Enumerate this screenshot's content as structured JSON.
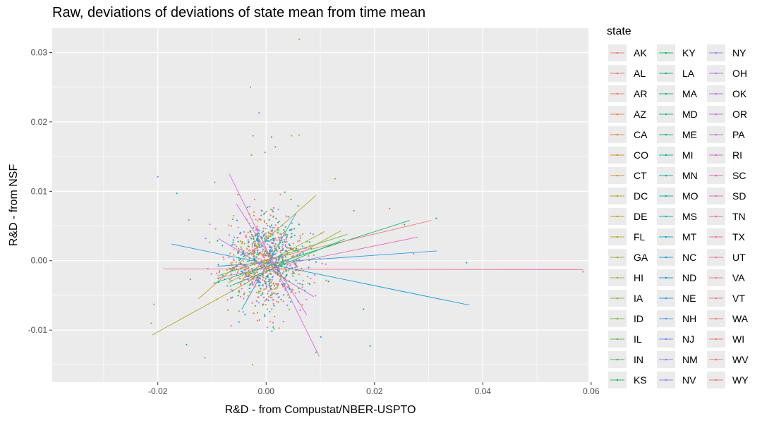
{
  "chart_data": {
    "type": "scatter",
    "title": "Raw, deviations of deviations of state mean from time mean",
    "xlabel": "R&D - from Compustat/NBER-USPTO",
    "ylabel": "R&D - from NSF",
    "xlim": [
      -0.0395,
      0.0595
    ],
    "ylim": [
      -0.0175,
      0.0335
    ],
    "x_ticks": [
      -0.02,
      0.0,
      0.02,
      0.04,
      0.06
    ],
    "x_tick_labels": [
      "-0.02",
      "0.00",
      "0.02",
      "0.04",
      "0.06"
    ],
    "y_ticks": [
      -0.01,
      0.0,
      0.01,
      0.02,
      0.03
    ],
    "y_tick_labels": [
      "-0.01",
      "0.00",
      "0.01",
      "0.02",
      "0.03"
    ],
    "grid": true,
    "legend": {
      "title": "state",
      "placement": "right",
      "columns": 3,
      "entries": [
        {
          "label": "AK",
          "color": "#F8766D"
        },
        {
          "label": "AL",
          "color": "#F47A58"
        },
        {
          "label": "AR",
          "color": "#EF7F47"
        },
        {
          "label": "AZ",
          "color": "#E98537"
        },
        {
          "label": "CA",
          "color": "#E38B28"
        },
        {
          "label": "CO",
          "color": "#DC921C"
        },
        {
          "label": "CT",
          "color": "#D39A15"
        },
        {
          "label": "DC",
          "color": "#C9A013"
        },
        {
          "label": "DE",
          "color": "#BFA616"
        },
        {
          "label": "FL",
          "color": "#B3AC1C"
        },
        {
          "label": "GA",
          "color": "#A6B124"
        },
        {
          "label": "HI",
          "color": "#98B52C"
        },
        {
          "label": "IA",
          "color": "#87B933"
        },
        {
          "label": "ID",
          "color": "#74BC3A"
        },
        {
          "label": "IL",
          "color": "#5EBE40"
        },
        {
          "label": "IN",
          "color": "#42C046"
        },
        {
          "label": "KS",
          "color": "#1CC14E"
        },
        {
          "label": "KY",
          "color": "#00C15B"
        },
        {
          "label": "LA",
          "color": "#00C16A"
        },
        {
          "label": "MA",
          "color": "#00C07A"
        },
        {
          "label": "MD",
          "color": "#00BF8A"
        },
        {
          "label": "ME",
          "color": "#00BD99"
        },
        {
          "label": "MI",
          "color": "#00BBA7"
        },
        {
          "label": "MN",
          "color": "#00B9B4"
        },
        {
          "label": "MO",
          "color": "#00B6C1"
        },
        {
          "label": "MS",
          "color": "#00B3CD"
        },
        {
          "label": "MT",
          "color": "#00AFD8"
        },
        {
          "label": "NC",
          "color": "#00AAE2"
        },
        {
          "label": "ND",
          "color": "#00A5EB"
        },
        {
          "label": "NE",
          "color": "#1F9FF2"
        },
        {
          "label": "NH",
          "color": "#4B98F7"
        },
        {
          "label": "NJ",
          "color": "#6791FA"
        },
        {
          "label": "NM",
          "color": "#7F8AFC"
        },
        {
          "label": "NV",
          "color": "#9382FC"
        },
        {
          "label": "NY",
          "color": "#A57AFA"
        },
        {
          "label": "OH",
          "color": "#B574F6"
        },
        {
          "label": "OK",
          "color": "#C36EF0"
        },
        {
          "label": "OR",
          "color": "#D16AE8"
        },
        {
          "label": "PA",
          "color": "#DC67DE"
        },
        {
          "label": "RI",
          "color": "#E666D3"
        },
        {
          "label": "SC",
          "color": "#EE66C6"
        },
        {
          "label": "SD",
          "color": "#F467B8"
        },
        {
          "label": "TN",
          "color": "#F86AAA"
        },
        {
          "label": "TX",
          "color": "#FB6E9A"
        },
        {
          "label": "UT",
          "color": "#FC728B"
        },
        {
          "label": "VA",
          "color": "#FC7580"
        },
        {
          "label": "VT",
          "color": "#FB7777"
        },
        {
          "label": "WA",
          "color": "#FA7872"
        },
        {
          "label": "WI",
          "color": "#F9786F"
        },
        {
          "label": "WV",
          "color": "#F8776E"
        },
        {
          "label": "WY",
          "color": "#F8766D"
        }
      ]
    },
    "fit_lines": [
      {
        "state": "FL",
        "color": "#B3AC1C",
        "x": [
          -0.021,
          0.0138
        ],
        "y": [
          -0.0107,
          0.0043
        ]
      },
      {
        "state": "DE",
        "color": "#BFA616",
        "x": [
          -0.0125,
          0.0092
        ],
        "y": [
          -0.0055,
          0.0094
        ]
      },
      {
        "state": "MA",
        "color": "#00C07A",
        "x": [
          -0.0095,
          0.0265
        ],
        "y": [
          -0.0032,
          0.0058
        ]
      },
      {
        "state": "IL",
        "color": "#5EBE40",
        "x": [
          -0.009,
          0.015
        ],
        "y": [
          -0.0022,
          0.0038
        ]
      },
      {
        "state": "NV",
        "color": "#00A5EB",
        "x": [
          -0.0175,
          0.0375
        ],
        "y": [
          0.0024,
          -0.0064
        ]
      },
      {
        "state": "NE",
        "color": "#1F9FF2",
        "x": [
          -0.009,
          0.0315
        ],
        "y": [
          -0.0008,
          0.0014
        ]
      },
      {
        "state": "TX",
        "color": "#FB6E9A",
        "x": [
          -0.019,
          0.0585
        ],
        "y": [
          -0.0012,
          -0.0013
        ]
      },
      {
        "state": "VA",
        "color": "#FC7580",
        "x": [
          -0.007,
          0.0305
        ],
        "y": [
          -0.0012,
          0.0058
        ]
      },
      {
        "state": "SC",
        "color": "#EE66C6",
        "x": [
          -0.009,
          0.028
        ],
        "y": [
          -0.0025,
          0.0034
        ]
      },
      {
        "state": "PA",
        "color": "#DC67DE",
        "x": [
          -0.0068,
          0.0098
        ],
        "y": [
          0.0125,
          -0.0138
        ]
      },
      {
        "state": "OR",
        "color": "#D16AE8",
        "x": [
          -0.0055,
          0.0075
        ],
        "y": [
          0.0082,
          -0.0078
        ]
      },
      {
        "state": "MO",
        "color": "#00B6C1",
        "x": [
          -0.0045,
          0.0055
        ],
        "y": [
          -0.007,
          0.0068
        ]
      },
      {
        "state": "HI",
        "color": "#98B52C",
        "x": [
          -0.007,
          0.0108
        ],
        "y": [
          -0.0032,
          0.0042
        ]
      },
      {
        "state": "OK",
        "color": "#C36EF0",
        "x": [
          -0.0088,
          0.0088
        ],
        "y": [
          0.0032,
          -0.0052
        ]
      },
      {
        "state": "KY",
        "color": "#00C15B",
        "x": [
          -0.0062,
          0.0145
        ],
        "y": [
          -0.0035,
          0.0031
        ]
      }
    ],
    "outlier_points": [
      {
        "x": 0.0061,
        "y": 0.0319,
        "color": "#BFA616"
      },
      {
        "x": -0.0029,
        "y": 0.025,
        "color": "#C9A013"
      },
      {
        "x": -0.0013,
        "y": 0.0213,
        "color": "#C36EF0"
      },
      {
        "x": 0.0061,
        "y": 0.0181,
        "color": "#B3AC1C"
      },
      {
        "x": 0.0047,
        "y": 0.018,
        "color": "#A6B124"
      },
      {
        "x": -0.0024,
        "y": 0.018,
        "color": "#C36EF0"
      },
      {
        "x": 0.001,
        "y": 0.0178,
        "color": "#1F9FF2"
      },
      {
        "x": -0.0002,
        "y": 0.0156,
        "color": "#C36EF0"
      },
      {
        "x": 0.0017,
        "y": 0.0164,
        "color": "#4B98F7"
      },
      {
        "x": -0.0027,
        "y": 0.0152,
        "color": "#DC921C"
      },
      {
        "x": -0.02,
        "y": 0.0121,
        "color": "#7F8AFC"
      },
      {
        "x": -0.0165,
        "y": 0.0097,
        "color": "#00AFD8"
      },
      {
        "x": -0.0095,
        "y": 0.0113,
        "color": "#9382FC"
      },
      {
        "x": 0.0127,
        "y": 0.0118,
        "color": "#87B933"
      },
      {
        "x": 0.0314,
        "y": 0.0061,
        "color": "#00A5EB"
      },
      {
        "x": 0.0228,
        "y": 0.0075,
        "color": "#E38B28"
      },
      {
        "x": 0.037,
        "y": -0.0003,
        "color": "#00A5EB"
      },
      {
        "x": 0.0585,
        "y": -0.0016,
        "color": "#F467B8"
      },
      {
        "x": -0.0207,
        "y": -0.0063,
        "color": "#98B52C"
      },
      {
        "x": -0.0212,
        "y": -0.009,
        "color": "#B3AC1C"
      },
      {
        "x": -0.0147,
        "y": -0.0121,
        "color": "#00B3CD"
      },
      {
        "x": -0.0025,
        "y": -0.015,
        "color": "#D39A15"
      },
      {
        "x": 0.0192,
        "y": -0.0123,
        "color": "#00AFD8"
      },
      {
        "x": 0.0092,
        "y": -0.0132,
        "color": "#5EBE40"
      },
      {
        "x": 0.0101,
        "y": -0.011,
        "color": "#4B98F7"
      },
      {
        "x": -0.0113,
        "y": -0.014,
        "color": "#E98537"
      },
      {
        "x": 0.018,
        "y": -0.007,
        "color": "#00AAE2"
      },
      {
        "x": 0.0272,
        "y": 0.001,
        "color": "#F86AAA"
      },
      {
        "x": 0.0255,
        "y": 0.0052,
        "color": "#1CC14E"
      },
      {
        "x": 0.0162,
        "y": 0.0072,
        "color": "#42C046"
      }
    ],
    "cloud": {
      "points_per_state": 20,
      "sd_x": 0.0038,
      "sd_y": 0.0034,
      "seed": 7
    }
  }
}
